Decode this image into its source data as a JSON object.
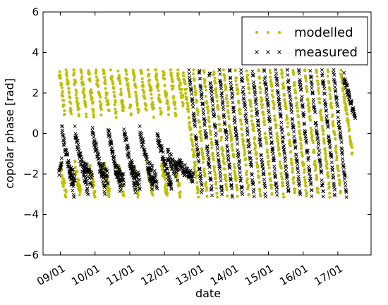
{
  "chart_data": {
    "type": "scatter",
    "xlabel": "date",
    "ylabel": "copolar phase [rad]",
    "xlim": [
      "2016-01-08T12:00",
      "2016-01-17T23:00"
    ],
    "ylim": [
      -6,
      6
    ],
    "y_ticks": [
      6,
      4,
      2,
      0,
      -2,
      -4,
      -6
    ],
    "y_tick_labels": [
      "6",
      "4",
      "2",
      "0",
      "−2",
      "−4",
      "−6"
    ],
    "x_ticks": [
      "2016-01-09",
      "2016-01-10",
      "2016-01-11",
      "2016-01-12",
      "2016-01-13",
      "2016-01-14",
      "2016-01-15",
      "2016-01-16",
      "2016-01-17"
    ],
    "x_tick_labels": [
      "09/01",
      "10/01",
      "11/01",
      "12/01",
      "13/01",
      "14/01",
      "15/01",
      "16/01",
      "17/01"
    ],
    "legend": {
      "position": "upper right",
      "entries": [
        {
          "label": "modelled",
          "marker": "dot",
          "color": "#bfbf00"
        },
        {
          "label": "measured",
          "marker": "x",
          "color": "#000000"
        }
      ]
    },
    "series": [
      {
        "name": "modelled",
        "marker": "dot",
        "color": "#bfbf00",
        "segments": [
          {
            "t0": "2016-01-08T23:10",
            "t1": "2016-01-09T03:00",
            "y0": 3.1,
            "y1": 1.0,
            "jitter": 0.3
          },
          {
            "t0": "2016-01-09T04:00",
            "t1": "2016-01-09T07:40",
            "y0": 3.1,
            "y1": 1.0,
            "jitter": 0.3
          },
          {
            "t0": "2016-01-09T09:00",
            "t1": "2016-01-09T13:00",
            "y0": 3.1,
            "y1": 1.0,
            "jitter": 0.3
          },
          {
            "t0": "2016-01-09T14:00",
            "t1": "2016-01-09T18:00",
            "y0": 3.1,
            "y1": 1.0,
            "jitter": 0.3
          },
          {
            "t0": "2016-01-09T19:20",
            "t1": "2016-01-09T23:10",
            "y0": 3.1,
            "y1": 1.0,
            "jitter": 0.3
          },
          {
            "t0": "2016-01-10T00:30",
            "t1": "2016-01-10T04:30",
            "y0": 3.1,
            "y1": 1.0,
            "jitter": 0.3
          },
          {
            "t0": "2016-01-10T05:40",
            "t1": "2016-01-10T09:40",
            "y0": 3.1,
            "y1": 1.0,
            "jitter": 0.3
          },
          {
            "t0": "2016-01-10T10:50",
            "t1": "2016-01-10T14:40",
            "y0": 3.1,
            "y1": 1.0,
            "jitter": 0.3
          },
          {
            "t0": "2016-01-10T16:00",
            "t1": "2016-01-10T19:50",
            "y0": 3.1,
            "y1": 1.0,
            "jitter": 0.3
          },
          {
            "t0": "2016-01-10T21:10",
            "t1": "2016-01-11T01:00",
            "y0": 3.1,
            "y1": 1.0,
            "jitter": 0.3
          },
          {
            "t0": "2016-01-11T02:20",
            "t1": "2016-01-11T06:20",
            "y0": 3.1,
            "y1": 1.0,
            "jitter": 0.3
          },
          {
            "t0": "2016-01-11T07:30",
            "t1": "2016-01-11T11:30",
            "y0": 3.1,
            "y1": 1.0,
            "jitter": 0.3
          },
          {
            "t0": "2016-01-11T12:40",
            "t1": "2016-01-11T16:40",
            "y0": 3.1,
            "y1": 1.0,
            "jitter": 0.3
          },
          {
            "t0": "2016-01-11T17:50",
            "t1": "2016-01-11T21:50",
            "y0": 3.1,
            "y1": 1.0,
            "jitter": 0.3
          },
          {
            "t0": "2016-01-11T23:00",
            "t1": "2016-01-12T03:00",
            "y0": 3.1,
            "y1": 1.0,
            "jitter": 0.3
          },
          {
            "t0": "2016-01-12T04:10",
            "t1": "2016-01-12T08:00",
            "y0": 3.1,
            "y1": 1.0,
            "jitter": 0.3
          },
          {
            "t0": "2016-01-12T09:00",
            "t1": "2016-01-12T13:00",
            "y0": 3.1,
            "y1": 1.5,
            "jitter": 0.3
          },
          {
            "t0": "2016-01-08T23:50",
            "t1": "2016-01-09T04:00",
            "y0": -1.6,
            "y1": -3.0,
            "jitter": 0.3
          },
          {
            "t0": "2016-01-09T10:00",
            "t1": "2016-01-09T14:00",
            "y0": -1.6,
            "y1": -3.0,
            "jitter": 0.3
          },
          {
            "t0": "2016-01-09T20:00",
            "t1": "2016-01-10T00:00",
            "y0": -1.6,
            "y1": -3.0,
            "jitter": 0.3
          },
          {
            "t0": "2016-01-10T06:00",
            "t1": "2016-01-10T10:00",
            "y0": -1.6,
            "y1": -3.0,
            "jitter": 0.3
          },
          {
            "t0": "2016-01-10T16:00",
            "t1": "2016-01-10T20:00",
            "y0": -1.6,
            "y1": -3.0,
            "jitter": 0.3
          },
          {
            "t0": "2016-01-11T02:00",
            "t1": "2016-01-11T06:00",
            "y0": -1.6,
            "y1": -3.0,
            "jitter": 0.3
          },
          {
            "t0": "2016-01-11T12:00",
            "t1": "2016-01-11T16:00",
            "y0": -1.6,
            "y1": -3.0,
            "jitter": 0.3
          },
          {
            "t0": "2016-01-11T22:00",
            "t1": "2016-01-12T02:00",
            "y0": -1.6,
            "y1": -3.0,
            "jitter": 0.3
          },
          {
            "t0": "2016-01-12T07:00",
            "t1": "2016-01-12T11:00",
            "y0": -1.6,
            "y1": -3.0,
            "jitter": 0.3
          },
          {
            "t0": "2016-01-12T13:00",
            "t1": "2016-01-12T23:30",
            "y0": 3.1,
            "y1": -3.0,
            "jitter": 0.25
          },
          {
            "t0": "2016-01-12T20:00",
            "t1": "2016-01-13T05:30",
            "y0": 3.1,
            "y1": -3.0,
            "jitter": 0.25
          },
          {
            "t0": "2016-01-13T03:00",
            "t1": "2016-01-13T12:30",
            "y0": 3.1,
            "y1": -3.0,
            "jitter": 0.25
          },
          {
            "t0": "2016-01-13T10:00",
            "t1": "2016-01-13T19:30",
            "y0": 3.1,
            "y1": -3.0,
            "jitter": 0.25
          },
          {
            "t0": "2016-01-13T17:00",
            "t1": "2016-01-14T02:30",
            "y0": 3.1,
            "y1": -3.0,
            "jitter": 0.25
          },
          {
            "t0": "2016-01-14T01:00",
            "t1": "2016-01-14T10:30",
            "y0": 3.1,
            "y1": -3.0,
            "jitter": 0.25
          },
          {
            "t0": "2016-01-14T09:00",
            "t1": "2016-01-14T18:30",
            "y0": 3.1,
            "y1": -3.0,
            "jitter": 0.25
          },
          {
            "t0": "2016-01-14T17:00",
            "t1": "2016-01-15T02:30",
            "y0": 3.1,
            "y1": -3.0,
            "jitter": 0.25
          },
          {
            "t0": "2016-01-15T01:00",
            "t1": "2016-01-15T10:30",
            "y0": 3.1,
            "y1": -3.0,
            "jitter": 0.25
          },
          {
            "t0": "2016-01-15T09:00",
            "t1": "2016-01-15T18:30",
            "y0": 3.1,
            "y1": -3.0,
            "jitter": 0.25
          },
          {
            "t0": "2016-01-15T17:00",
            "t1": "2016-01-16T02:30",
            "y0": 3.1,
            "y1": -3.0,
            "jitter": 0.25
          },
          {
            "t0": "2016-01-16T01:00",
            "t1": "2016-01-16T10:30",
            "y0": 3.1,
            "y1": -3.0,
            "jitter": 0.25
          },
          {
            "t0": "2016-01-16T09:00",
            "t1": "2016-01-16T18:30",
            "y0": 3.1,
            "y1": -3.0,
            "jitter": 0.25
          },
          {
            "t0": "2016-01-16T17:00",
            "t1": "2016-01-17T02:00",
            "y0": 3.1,
            "y1": -3.0,
            "jitter": 0.25
          },
          {
            "t0": "2016-01-17T02:00",
            "t1": "2016-01-17T10:00",
            "y0": 3.1,
            "y1": -1.0,
            "jitter": 0.25
          }
        ]
      },
      {
        "name": "measured",
        "marker": "x",
        "color": "#000000",
        "segments": [
          {
            "t0": "2016-01-08T23:00",
            "t1": "2016-01-09T01:00",
            "y0": -2.0,
            "y1": -1.3,
            "jitter": 0.25
          },
          {
            "t0": "2016-01-09T01:00",
            "t1": "2016-01-09T09:30",
            "y0": 0.2,
            "y1": -3.0,
            "jitter": 0.3
          },
          {
            "t0": "2016-01-09T06:00",
            "t1": "2016-01-09T10:00",
            "y0": -1.8,
            "y1": -2.2,
            "jitter": 0.35
          },
          {
            "t0": "2016-01-09T10:00",
            "t1": "2016-01-09T19:00",
            "y0": 0.1,
            "y1": -2.9,
            "jitter": 0.3
          },
          {
            "t0": "2016-01-09T16:00",
            "t1": "2016-01-09T22:00",
            "y0": -1.5,
            "y1": -2.3,
            "jitter": 0.35
          },
          {
            "t0": "2016-01-09T22:00",
            "t1": "2016-01-10T07:00",
            "y0": 0.1,
            "y1": -2.8,
            "jitter": 0.3
          },
          {
            "t0": "2016-01-10T04:00",
            "t1": "2016-01-10T09:00",
            "y0": -1.6,
            "y1": -2.2,
            "jitter": 0.35
          },
          {
            "t0": "2016-01-10T09:00",
            "t1": "2016-01-10T18:00",
            "y0": 0.1,
            "y1": -2.9,
            "jitter": 0.3
          },
          {
            "t0": "2016-01-10T14:00",
            "t1": "2016-01-10T20:00",
            "y0": -1.6,
            "y1": -2.3,
            "jitter": 0.35
          },
          {
            "t0": "2016-01-10T20:00",
            "t1": "2016-01-11T04:00",
            "y0": 0.1,
            "y1": -2.8,
            "jitter": 0.3
          },
          {
            "t0": "2016-01-11T01:00",
            "t1": "2016-01-11T07:00",
            "y0": -1.6,
            "y1": -2.4,
            "jitter": 0.35
          },
          {
            "t0": "2016-01-11T07:00",
            "t1": "2016-01-11T16:00",
            "y0": 0.1,
            "y1": -2.7,
            "jitter": 0.3
          },
          {
            "t0": "2016-01-11T13:00",
            "t1": "2016-01-11T19:00",
            "y0": -1.6,
            "y1": -2.4,
            "jitter": 0.35
          },
          {
            "t0": "2016-01-11T19:00",
            "t1": "2016-01-12T05:00",
            "y0": 0.0,
            "y1": -2.8,
            "jitter": 0.3
          },
          {
            "t0": "2016-01-12T02:00",
            "t1": "2016-01-12T09:00",
            "y0": -1.0,
            "y1": -2.0,
            "jitter": 0.35
          },
          {
            "t0": "2016-01-12T08:00",
            "t1": "2016-01-12T20:00",
            "y0": -1.4,
            "y1": -2.2,
            "jitter": 0.3
          },
          {
            "t0": "2016-01-12T17:00",
            "t1": "2016-01-13T02:00",
            "y0": 3.1,
            "y1": -2.9,
            "jitter": 0.25
          },
          {
            "t0": "2016-01-13T00:00",
            "t1": "2016-01-13T09:00",
            "y0": 3.1,
            "y1": -3.0,
            "jitter": 0.25
          },
          {
            "t0": "2016-01-13T07:00",
            "t1": "2016-01-13T16:00",
            "y0": 3.1,
            "y1": -3.0,
            "jitter": 0.25
          },
          {
            "t0": "2016-01-13T14:00",
            "t1": "2016-01-13T23:00",
            "y0": 3.1,
            "y1": -3.0,
            "jitter": 0.25
          },
          {
            "t0": "2016-01-13T21:00",
            "t1": "2016-01-14T06:00",
            "y0": 3.1,
            "y1": -3.0,
            "jitter": 0.25
          },
          {
            "t0": "2016-01-14T05:00",
            "t1": "2016-01-14T14:00",
            "y0": 3.1,
            "y1": -3.0,
            "jitter": 0.25
          },
          {
            "t0": "2016-01-14T13:00",
            "t1": "2016-01-14T22:00",
            "y0": 3.1,
            "y1": -3.0,
            "jitter": 0.25
          },
          {
            "t0": "2016-01-14T21:00",
            "t1": "2016-01-15T06:00",
            "y0": 3.1,
            "y1": -3.0,
            "jitter": 0.25
          },
          {
            "t0": "2016-01-15T05:00",
            "t1": "2016-01-15T14:00",
            "y0": 3.1,
            "y1": -3.0,
            "jitter": 0.25
          },
          {
            "t0": "2016-01-15T13:00",
            "t1": "2016-01-15T22:00",
            "y0": 3.1,
            "y1": -3.0,
            "jitter": 0.25
          },
          {
            "t0": "2016-01-15T21:00",
            "t1": "2016-01-16T06:00",
            "y0": 3.1,
            "y1": -3.0,
            "jitter": 0.25
          },
          {
            "t0": "2016-01-16T05:00",
            "t1": "2016-01-16T14:00",
            "y0": 3.1,
            "y1": -3.0,
            "jitter": 0.25
          },
          {
            "t0": "2016-01-16T13:00",
            "t1": "2016-01-16T22:00",
            "y0": 3.1,
            "y1": -3.0,
            "jitter": 0.25
          },
          {
            "t0": "2016-01-16T21:00",
            "t1": "2016-01-17T06:00",
            "y0": 3.1,
            "y1": -3.0,
            "jitter": 0.25
          },
          {
            "t0": "2016-01-17T04:00",
            "t1": "2016-01-17T12:00",
            "y0": 2.8,
            "y1": 0.8,
            "jitter": 0.25
          }
        ]
      }
    ]
  }
}
